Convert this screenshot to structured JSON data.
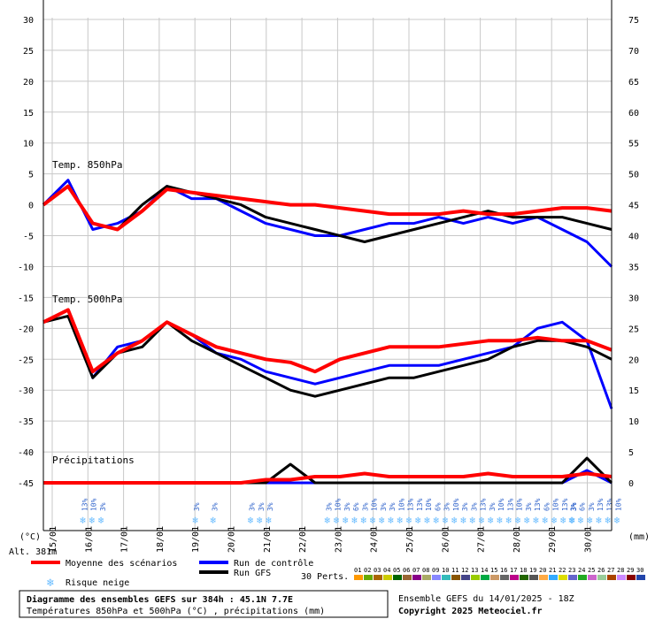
{
  "chart_data": {
    "type": "line",
    "title": "Diagramme des ensembles GEFS sur 384h : 45.1N 7.7E",
    "subtitle": "Températures 850hPa et 500hPa (°C) , précipitations (mm)",
    "ensemble_info": "Ensemble GEFS du 14/01/2025 - 18Z",
    "copyright": "Copyright 2025 Meteociel.fr",
    "altitude": "Alt. 381m",
    "left_axis": {
      "unit": "(°C)",
      "range": [
        -45,
        30
      ],
      "ticks": [
        30,
        25,
        20,
        15,
        10,
        5,
        0,
        -5,
        -10,
        -15,
        -20,
        -25,
        -30,
        -35,
        -40,
        -45
      ]
    },
    "right_axis": {
      "unit": "(mm)",
      "range": [
        0,
        75
      ],
      "ticks": [
        75,
        70,
        65,
        60,
        55,
        50,
        45,
        40,
        35,
        30,
        25,
        20,
        15,
        10,
        5,
        0
      ]
    },
    "date_labels": [
      "15/01",
      "16/01",
      "17/01",
      "18/01",
      "19/01",
      "20/01",
      "21/01",
      "22/01",
      "23/01",
      "24/01",
      "25/01",
      "26/01",
      "27/01",
      "28/01",
      "29/01",
      "30/01"
    ],
    "section_labels": {
      "t850": "Temp. 850hPa",
      "t500": "Temp. 500hPa",
      "precip": "Précipitations"
    },
    "legend": {
      "mean": "Moyenne des scénarios",
      "control": "Run de contrôle",
      "gfs": "Run GFS",
      "snow": "Risque neige",
      "perts": "30 Perts."
    },
    "colors": {
      "mean": "#ff0000",
      "control": "#0000ff",
      "gfs": "#000000",
      "snow": "#66bbff",
      "perts": [
        "#ff9900",
        "#66aa00",
        "#aa6600",
        "#cccc00",
        "#006600",
        "#996633",
        "#880088",
        "#aaaa66",
        "#8888ff",
        "#33bbbb",
        "#885500",
        "#444488",
        "#99cc00",
        "#00aa44",
        "#cc9966",
        "#666666",
        "#bb0088",
        "#226600",
        "#555555",
        "#ffaa44",
        "#33aaff",
        "#dddd00",
        "#6666cc",
        "#22aa22",
        "#cc66cc",
        "#99cc99",
        "#aa4400",
        "#cc88ff",
        "#880000",
        "#2244aa"
      ]
    },
    "series": [
      {
        "name": "Moyenne des scénarios",
        "t850": [
          0,
          3,
          -3,
          -4,
          -1,
          2.5,
          2,
          1.5,
          1,
          0.5,
          0,
          0,
          -0.5,
          -1,
          -1.5,
          -1.5,
          -1.5,
          -1,
          -1.5,
          -1.5,
          -1,
          -0.5,
          -0.5,
          -1
        ],
        "t500": [
          -19,
          -17,
          -27,
          -24,
          -22,
          -19,
          -21,
          -23,
          -24,
          -25,
          -25.5,
          -27,
          -25,
          -24,
          -23,
          -23,
          -23,
          -22.5,
          -22,
          -22,
          -21.5,
          -22,
          -22,
          -23.5
        ],
        "precip": [
          0,
          0,
          0,
          0,
          0,
          0,
          0,
          0,
          0,
          0.5,
          0.5,
          1,
          1,
          1.5,
          1,
          1,
          1,
          1,
          1.5,
          1,
          1,
          1,
          1.5,
          1
        ]
      },
      {
        "name": "Run de contrôle",
        "t850": [
          0,
          4,
          -4,
          -3,
          -1,
          3,
          1,
          1,
          -1,
          -3,
          -4,
          -5,
          -5,
          -4,
          -3,
          -3,
          -2,
          -3,
          -2,
          -3,
          -2,
          -4,
          -6,
          -10
        ],
        "t500": [
          -19,
          -17,
          -28,
          -23,
          -22,
          -19,
          -21,
          -24,
          -25,
          -27,
          -28,
          -29,
          -28,
          -27,
          -26,
          -26,
          -26,
          -25,
          -24,
          -23,
          -20,
          -19,
          -22,
          -33
        ],
        "precip": [
          0,
          0,
          0,
          0,
          0,
          0,
          0,
          0,
          0,
          0,
          0,
          0,
          0,
          0,
          0,
          0,
          0,
          0,
          0,
          0,
          0,
          0,
          2,
          0
        ]
      },
      {
        "name": "Run GFS",
        "t850": [
          0,
          3,
          -3,
          -4,
          0,
          3,
          2,
          1,
          0,
          -2,
          -3,
          -4,
          -5,
          -6,
          -5,
          -4,
          -3,
          -2,
          -1,
          -2,
          -2,
          -2,
          -3,
          -4
        ],
        "t500": [
          -19,
          -18,
          -28,
          -24,
          -23,
          -19,
          -22,
          -24,
          -26,
          -28,
          -30,
          -31,
          -30,
          -29,
          -28,
          -28,
          -27,
          -26,
          -25,
          -23,
          -22,
          -22,
          -23,
          -25
        ],
        "precip": [
          0,
          0,
          0,
          0,
          0,
          0,
          0,
          0,
          0,
          0,
          3,
          0,
          0,
          0,
          0,
          0,
          0,
          0,
          0,
          0,
          0,
          0,
          4,
          0
        ]
      }
    ],
    "snow_risk": [
      {
        "day": 0.9,
        "labels": [
          "13%",
          "10%",
          "3%"
        ]
      },
      {
        "day": 4.05,
        "labels": [
          "3%"
        ]
      },
      {
        "day": 4.55,
        "labels": [
          "3%"
        ]
      },
      {
        "day": 5.6,
        "labels": [
          "3%",
          "3%",
          "3%"
        ]
      },
      {
        "day": 7.75,
        "labels": [
          "3%",
          "10%",
          "3%",
          "6%",
          "3%",
          "10%",
          "3%",
          "3%",
          "10%",
          "13%",
          "13%",
          "10%",
          "6%",
          "3%",
          "10%",
          "3%",
          "3%",
          "13%",
          "3%",
          "10%",
          "13%",
          "10%",
          "3%",
          "13%",
          "6%",
          "10%",
          "13%",
          "3%"
        ]
      },
      {
        "day": 14.6,
        "labels": [
          "3%",
          "6%",
          "3%",
          "13%",
          "13%",
          "10%"
        ]
      }
    ],
    "grid": true
  }
}
